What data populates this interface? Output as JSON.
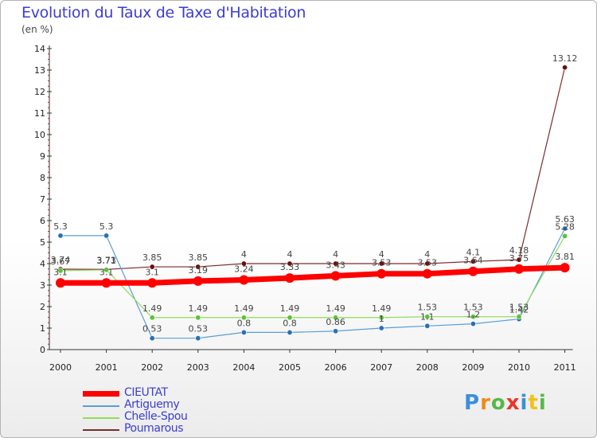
{
  "header": {
    "title": "Evolution du Taux de Taxe d'Habitation",
    "unit": "(en %)"
  },
  "logo": {
    "text": "Proxiti",
    "colors": [
      "#3a8fd9",
      "#f08a1c",
      "#58b848",
      "#e8352e",
      "#3a8fd9",
      "#f0c21c",
      "#58b848"
    ]
  },
  "chart_data": {
    "type": "line",
    "x": [
      "2000",
      "2001",
      "2002",
      "2003",
      "2004",
      "2005",
      "2006",
      "2007",
      "2008",
      "2009",
      "2010",
      "2011"
    ],
    "ylim": [
      0,
      14
    ],
    "yticks": [
      "0",
      "1",
      "2",
      "3",
      "4",
      "5",
      "6",
      "7",
      "8",
      "9",
      "10",
      "11",
      "12",
      "13",
      "14"
    ],
    "grid": false,
    "legend_position": "bottom-left",
    "series": [
      {
        "name": "Poumarous",
        "color": "#7a2c2c",
        "point_color": "#6b0f0f",
        "width": 1.2,
        "values": [
          3.74,
          3.73,
          3.85,
          3.85,
          4,
          4,
          4,
          4,
          4,
          4.1,
          4.18,
          13.12
        ],
        "labels": [
          "3.74",
          "3.73",
          "3.85",
          "3.85",
          "4",
          "4",
          "4",
          "4",
          "4",
          "4.1",
          "4.18",
          "13.12"
        ]
      },
      {
        "name": "Artiguemy",
        "color": "#5a9dd6",
        "point_color": "#2a6fb8",
        "width": 1.2,
        "values": [
          5.3,
          5.3,
          0.53,
          0.53,
          0.8,
          0.8,
          0.86,
          1,
          1.1,
          1.2,
          1.42,
          5.63
        ],
        "labels": [
          "5.3",
          "5.3",
          "0.53",
          "0.53",
          "0.8",
          "0.8",
          "0.86",
          "1",
          "1.1",
          "1.2",
          "1.42",
          "5.63"
        ]
      },
      {
        "name": "Chelle-Spou",
        "color": "#8fdc5a",
        "point_color": "#5cc23a",
        "width": 1.2,
        "values": [
          3.67,
          3.71,
          1.49,
          1.49,
          1.49,
          1.49,
          1.49,
          1.49,
          1.53,
          1.53,
          1.53,
          5.28
        ],
        "labels": [
          "3.67",
          "3.71",
          "1.49",
          "1.49",
          "1.49",
          "1.49",
          "1.49",
          "1.49",
          "1.53",
          "1.53",
          "1.53",
          "5.28"
        ]
      },
      {
        "name": "CIEUTAT",
        "color": "#ff0000",
        "point_color": "#ff0000",
        "width": 7,
        "values": [
          3.1,
          3.1,
          3.1,
          3.19,
          3.24,
          3.33,
          3.43,
          3.53,
          3.53,
          3.64,
          3.75,
          3.81
        ],
        "labels": [
          "3.1",
          "3.1",
          "3.1",
          "3.19",
          "3.24",
          "3.33",
          "3.43",
          "3.53",
          "3.53",
          "3.64",
          "3.75",
          "3.81"
        ]
      }
    ],
    "legend_order": [
      "CIEUTAT",
      "Artiguemy",
      "Chelle-Spou",
      "Poumarous"
    ]
  }
}
